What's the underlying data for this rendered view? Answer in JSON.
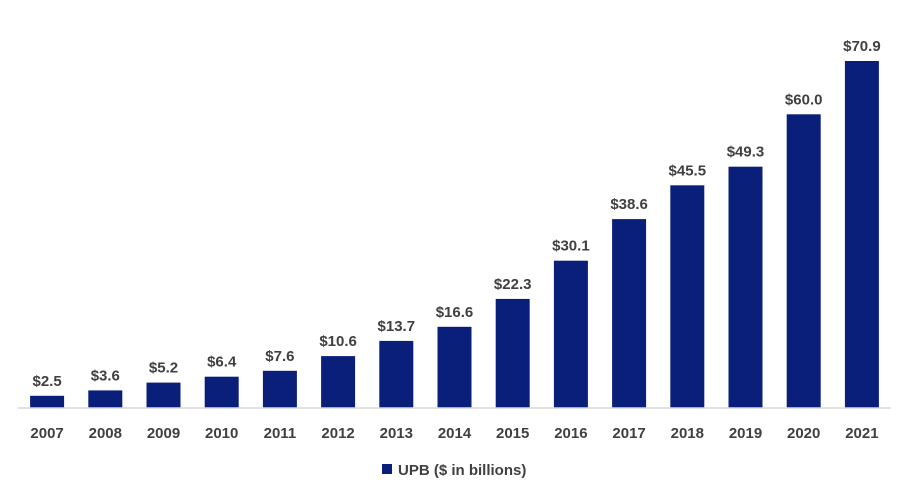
{
  "chart_data": {
    "type": "bar",
    "title": "",
    "xlabel": "",
    "ylabel": "",
    "categories": [
      "2007",
      "2008",
      "2009",
      "2010",
      "2011",
      "2012",
      "2013",
      "2014",
      "2015",
      "2016",
      "2017",
      "2018",
      "2019",
      "2020",
      "2021"
    ],
    "series": [
      {
        "name": "UPB ($ in billions)",
        "color": "#0a1f7a",
        "values": [
          2.5,
          3.6,
          5.2,
          6.4,
          7.6,
          10.6,
          13.7,
          16.6,
          22.3,
          30.1,
          38.6,
          45.5,
          49.3,
          60.0,
          70.9
        ],
        "labels": [
          "$2.5",
          "$3.6",
          "$5.2",
          "$6.4",
          "$7.6",
          "$10.6",
          "$13.7",
          "$16.6",
          "$22.3",
          "$30.1",
          "$38.6",
          "$45.5",
          "$49.3",
          "$60.0",
          "$70.9"
        ]
      }
    ],
    "ylim": [
      0,
      70.9
    ],
    "grid": false,
    "legend_position": "bottom",
    "axis_color": "#d9d9d9",
    "text_color": "#404040"
  }
}
